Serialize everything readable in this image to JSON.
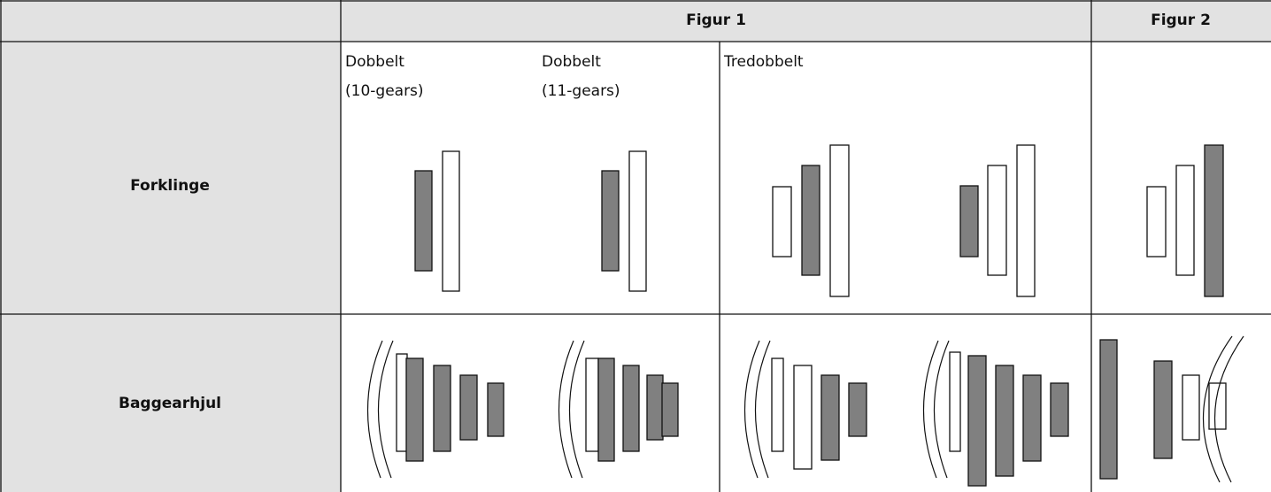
{
  "header": {
    "columns": [
      "Figur 1",
      "Figur 2"
    ]
  },
  "figur1_labels": [
    {
      "lines": [
        "Dobbelt",
        "(10-gears)"
      ]
    },
    {
      "lines": [
        "Dobbelt",
        "(11-gears)"
      ]
    },
    {
      "lines": [
        "Tredobbelt"
      ]
    }
  ],
  "rows": [
    "Forklinge",
    "Baggearhjul"
  ]
}
